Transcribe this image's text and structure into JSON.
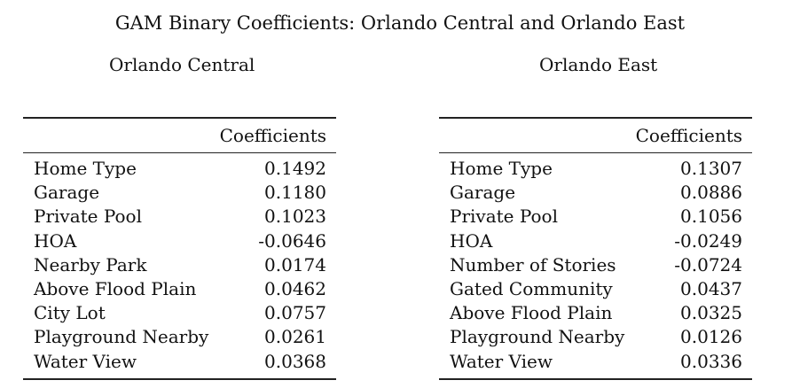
{
  "title": "GAM Binary Coefficients: Orlando Central and Orlando East",
  "panels": [
    {
      "title": "Orlando Central",
      "column_header": "Coefficients",
      "rows": [
        {
          "label": "Home Type",
          "value": "0.1492"
        },
        {
          "label": "Garage",
          "value": "0.1180"
        },
        {
          "label": "Private Pool",
          "value": "0.1023"
        },
        {
          "label": "HOA",
          "value": "-0.0646"
        },
        {
          "label": "Nearby Park",
          "value": "0.0174"
        },
        {
          "label": "Above Flood Plain",
          "value": "0.0462"
        },
        {
          "label": "City Lot",
          "value": "0.0757"
        },
        {
          "label": "Playground Nearby",
          "value": "0.0261"
        },
        {
          "label": "Water View",
          "value": "0.0368"
        }
      ]
    },
    {
      "title": "Orlando East",
      "column_header": "Coefficients",
      "rows": [
        {
          "label": "Home Type",
          "value": "0.1307"
        },
        {
          "label": "Garage",
          "value": "0.0886"
        },
        {
          "label": "Private Pool",
          "value": "0.1056"
        },
        {
          "label": "HOA",
          "value": "-0.0249"
        },
        {
          "label": "Number of Stories",
          "value": "-0.0724"
        },
        {
          "label": "Gated Community",
          "value": "0.0437"
        },
        {
          "label": "Above Flood Plain",
          "value": "0.0325"
        },
        {
          "label": "Playground Nearby",
          "value": "0.0126"
        },
        {
          "label": "Water View",
          "value": "0.0336"
        }
      ]
    }
  ]
}
